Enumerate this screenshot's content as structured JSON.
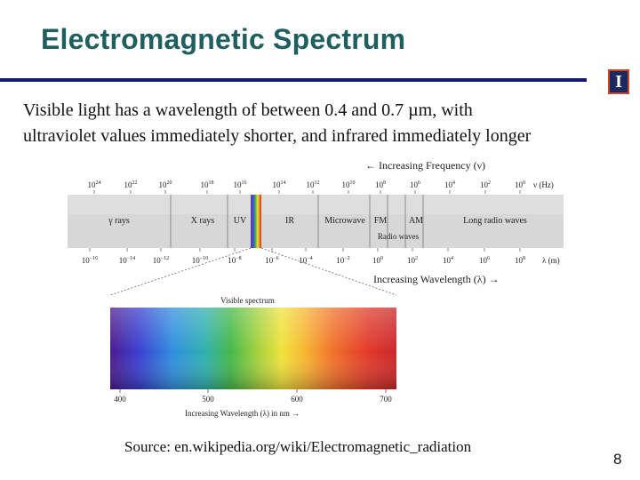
{
  "slide": {
    "title": "Electromagnetic Spectrum",
    "body_line1": "Visible light has a wavelength of between 0.4 and 0.7 µm, with",
    "body_line2": "ultraviolet values immediately shorter, and infrared immediately longer",
    "source": "Source: en.wikipedia.org/wiki/Electromagnetic_radiation",
    "page_number": "8",
    "logo_glyph": "I"
  },
  "figure": {
    "freq_label": "← Increasing Frequency (ν)",
    "freq_unit": "ν (Hz)",
    "freq_ticks": [
      {
        "base": "10",
        "exp": "24"
      },
      {
        "base": "10",
        "exp": "22"
      },
      {
        "base": "10",
        "exp": "20"
      },
      {
        "base": "10",
        "exp": "18"
      },
      {
        "base": "10",
        "exp": "16"
      },
      {
        "base": "10",
        "exp": "14"
      },
      {
        "base": "10",
        "exp": "12"
      },
      {
        "base": "10",
        "exp": "10"
      },
      {
        "base": "10",
        "exp": "8"
      },
      {
        "base": "10",
        "exp": "6"
      },
      {
        "base": "10",
        "exp": "4"
      },
      {
        "base": "10",
        "exp": "2"
      },
      {
        "base": "10",
        "exp": "0"
      }
    ],
    "bands": [
      "γ rays",
      "X rays",
      "UV",
      "IR",
      "Microwave",
      "FM",
      "AM",
      "Long radio waves"
    ],
    "radio_label": "Radio waves",
    "wl_unit": "λ (m)",
    "wl_ticks": [
      {
        "base": "10",
        "exp": "−16"
      },
      {
        "base": "10",
        "exp": "−14"
      },
      {
        "base": "10",
        "exp": "−12"
      },
      {
        "base": "10",
        "exp": "−10"
      },
      {
        "base": "10",
        "exp": "−8"
      },
      {
        "base": "10",
        "exp": "−6"
      },
      {
        "base": "10",
        "exp": "−4"
      },
      {
        "base": "10",
        "exp": "−2"
      },
      {
        "base": "10",
        "exp": "0"
      },
      {
        "base": "10",
        "exp": "2"
      },
      {
        "base": "10",
        "exp": "4"
      },
      {
        "base": "10",
        "exp": "6"
      },
      {
        "base": "10",
        "exp": "8"
      }
    ],
    "wl_label": "Increasing Wavelength (λ) →",
    "visible_title": "Visible spectrum",
    "visible_ticks": [
      "400",
      "500",
      "600",
      "700"
    ],
    "visible_axis_label": "Increasing Wavelength (λ) in nm →"
  }
}
